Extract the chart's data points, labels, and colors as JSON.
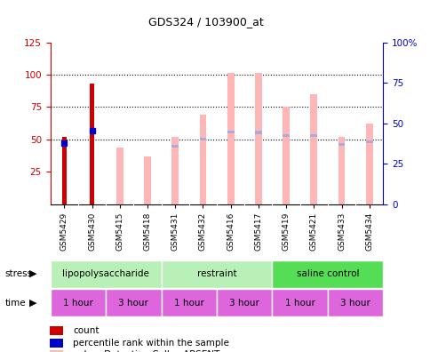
{
  "title": "GDS324 / 103900_at",
  "samples": [
    "GSM5429",
    "GSM5430",
    "GSM5415",
    "GSM5418",
    "GSM5431",
    "GSM5432",
    "GSM5416",
    "GSM5417",
    "GSM5419",
    "GSM5421",
    "GSM5433",
    "GSM5434"
  ],
  "red_bars": [
    52,
    93,
    0,
    0,
    0,
    0,
    0,
    0,
    0,
    0,
    0,
    0
  ],
  "blue_dots_y": [
    47,
    57,
    0,
    0,
    0,
    0,
    0,
    0,
    0,
    0,
    0,
    0
  ],
  "pink_bars": [
    0,
    0,
    44,
    37,
    52,
    69,
    101,
    101,
    75,
    85,
    52,
    62
  ],
  "blue_seg_bottom": [
    0,
    0,
    0,
    0,
    44,
    49,
    55,
    54,
    52,
    52,
    45,
    47
  ],
  "blue_seg_top": [
    0,
    0,
    0,
    0,
    46,
    51,
    57,
    57,
    54,
    54,
    47,
    49
  ],
  "ylim_left": [
    0,
    125
  ],
  "yticks_left": [
    25,
    50,
    75,
    100,
    125
  ],
  "ytick_labels_right": [
    "0",
    "25",
    "50",
    "75",
    "100%"
  ],
  "bar_width": 0.25,
  "pink_color": "#ffb6b6",
  "blue_seg_color": "#aaaadd",
  "red_color": "#cc0000",
  "blue_dot_color": "#0000cc",
  "stress_light_green": "#b0f0b0",
  "stress_bright_green": "#55dd55",
  "time_row_color": "#dd66dd",
  "label_color_left": "#cc0000",
  "label_color_right": "#0000cc",
  "tick_area_color": "#d8d8d8",
  "plot_bg": "#ffffff"
}
